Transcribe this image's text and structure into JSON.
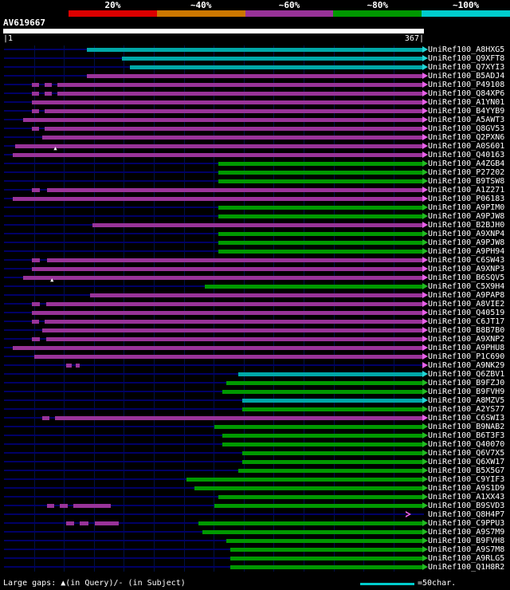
{
  "scale": {
    "labels": [
      "20%",
      "~40%",
      "~60%",
      "~80%",
      "~100%"
    ],
    "colors": [
      "#dd0000",
      "#cc7700",
      "#993399",
      "#009900",
      "#00cccc"
    ]
  },
  "query": {
    "name": "AV619667",
    "start_label": "|1",
    "end_label": "367|"
  },
  "colors": {
    "cyan": "#00a8a8",
    "purple": "#993399",
    "green": "#009900",
    "cyan_arrow": "#22d5d5",
    "purple_arrow": "#e860e8",
    "green_arrow": "#22bb22",
    "cyan_bright": "#00cccc",
    "row_line": "#000066"
  },
  "glyphs": {
    "gap_marker": "▲"
  },
  "chart_data": {
    "type": "bar",
    "title": "AV619667",
    "xlim": [
      1,
      367
    ],
    "legend_labels": [
      "20%",
      "~40%",
      "~60%",
      "~80%",
      "~100%"
    ],
    "bars": [
      {
        "label": "UniRef100_A8HXG5",
        "c": "cyan",
        "segs": [
          [
            73,
            367
          ]
        ]
      },
      {
        "label": "UniRef100_Q9XFT8",
        "c": "cyan",
        "segs": [
          [
            104,
            367
          ]
        ]
      },
      {
        "label": "UniRef100_Q7XYI3",
        "c": "cyan",
        "segs": [
          [
            111,
            367
          ]
        ]
      },
      {
        "label": "UniRef100_B5ADJ4",
        "c": "purple",
        "segs": [
          [
            73,
            367
          ]
        ]
      },
      {
        "label": "UniRef100_P49108",
        "c": "purple",
        "segs": [
          [
            25,
            31
          ],
          [
            36,
            42
          ],
          [
            47,
            367
          ]
        ]
      },
      {
        "label": "UniRef100_Q84XP6",
        "c": "purple",
        "segs": [
          [
            25,
            31
          ],
          [
            36,
            42
          ],
          [
            47,
            367
          ]
        ]
      },
      {
        "label": "UniRef100_A1YN01",
        "c": "purple",
        "segs": [
          [
            25,
            367
          ]
        ]
      },
      {
        "label": "UniRef100_B4YYB9",
        "c": "purple",
        "segs": [
          [
            25,
            31
          ],
          [
            36,
            367
          ]
        ]
      },
      {
        "label": "UniRef100_A5AWT3",
        "c": "purple",
        "segs": [
          [
            17,
            367
          ]
        ]
      },
      {
        "label": "UniRef100_Q8GV53",
        "c": "purple",
        "segs": [
          [
            25,
            31
          ],
          [
            36,
            367
          ]
        ]
      },
      {
        "label": "UniRef100_Q2PXN6",
        "c": "purple",
        "segs": [
          [
            34,
            367
          ]
        ]
      },
      {
        "label": "UniRef100_A0S601",
        "c": "purple",
        "segs": [
          [
            10,
            367
          ]
        ],
        "m": [
          46
        ]
      },
      {
        "label": "UniRef100_Q40163",
        "c": "purple",
        "segs": [
          [
            8,
            367
          ]
        ]
      },
      {
        "label": "UniRef100_A4ZGB4",
        "c": "green",
        "segs": [
          [
            188,
            367
          ]
        ]
      },
      {
        "label": "UniRef100_P27202",
        "c": "green",
        "segs": [
          [
            188,
            367
          ]
        ]
      },
      {
        "label": "UniRef100_B9TSW8",
        "c": "green",
        "segs": [
          [
            188,
            367
          ]
        ]
      },
      {
        "label": "UniRef100_A1Z271",
        "c": "purple",
        "segs": [
          [
            25,
            32
          ],
          [
            38,
            367
          ]
        ]
      },
      {
        "label": "UniRef100_P06183",
        "c": "purple",
        "segs": [
          [
            8,
            367
          ]
        ]
      },
      {
        "label": "UniRef100_A9PIM0",
        "c": "green",
        "segs": [
          [
            188,
            367
          ]
        ]
      },
      {
        "label": "UniRef100_A9PJW8",
        "c": "green",
        "segs": [
          [
            188,
            367
          ]
        ]
      },
      {
        "label": "UniRef100_B2BJH0",
        "c": "purple",
        "segs": [
          [
            78,
            367
          ]
        ]
      },
      {
        "label": "UniRef100_A9XNP4",
        "c": "green",
        "segs": [
          [
            188,
            367
          ]
        ]
      },
      {
        "label": "UniRef100_A9PJW8",
        "c": "green",
        "segs": [
          [
            188,
            367
          ]
        ]
      },
      {
        "label": "UniRef100_A9PH94",
        "c": "green",
        "segs": [
          [
            188,
            367
          ]
        ]
      },
      {
        "label": "UniRef100_C6SW43",
        "c": "purple",
        "segs": [
          [
            25,
            32
          ],
          [
            38,
            367
          ]
        ]
      },
      {
        "label": "UniRef100_A9XNP3",
        "c": "purple",
        "segs": [
          [
            25,
            367
          ]
        ]
      },
      {
        "label": "UniRef100_B6SQV5",
        "c": "purple",
        "segs": [
          [
            17,
            367
          ]
        ],
        "m": [
          43
        ]
      },
      {
        "label": "UniRef100_C5X9H4",
        "c": "green",
        "segs": [
          [
            176,
            367
          ]
        ]
      },
      {
        "label": "UniRef100_A9PAP8",
        "c": "purple",
        "segs": [
          [
            76,
            367
          ]
        ]
      },
      {
        "label": "UniRef100_A8VIE2",
        "c": "purple",
        "segs": [
          [
            25,
            32
          ],
          [
            37,
            367
          ]
        ]
      },
      {
        "label": "UniRef100_Q40519",
        "c": "purple",
        "segs": [
          [
            25,
            367
          ]
        ]
      },
      {
        "label": "UniRef100_C6JT17",
        "c": "purple",
        "segs": [
          [
            25,
            31
          ],
          [
            36,
            367
          ]
        ]
      },
      {
        "label": "UniRef100_B8B7B0",
        "c": "purple",
        "segs": [
          [
            34,
            367
          ]
        ]
      },
      {
        "label": "UniRef100_A9XNP2",
        "c": "purple",
        "segs": [
          [
            25,
            32
          ],
          [
            37,
            367
          ]
        ]
      },
      {
        "label": "UniRef100_A9PHU8",
        "c": "purple",
        "segs": [
          [
            8,
            367
          ]
        ]
      },
      {
        "label": "UniRef100_P1C690",
        "c": "purple",
        "segs": [
          [
            27,
            367
          ]
        ]
      },
      {
        "label": "UniRef100_A9NK29",
        "c": "purple",
        "segs": [
          [
            55,
            60
          ],
          [
            63,
            67
          ]
        ]
      },
      {
        "label": "UniRef100_Q6ZBV1",
        "c": "cyan",
        "segs": [
          [
            206,
            367
          ]
        ]
      },
      {
        "label": "UniRef100_B9FZJ0",
        "c": "green",
        "segs": [
          [
            195,
            367
          ]
        ]
      },
      {
        "label": "UniRef100_B9FVH9",
        "c": "green",
        "segs": [
          [
            192,
            367
          ]
        ]
      },
      {
        "label": "UniRef100_A8MZV5",
        "c": "cyan",
        "segs": [
          [
            209,
            367
          ]
        ]
      },
      {
        "label": "UniRef100_A2YS77",
        "c": "green",
        "segs": [
          [
            209,
            367
          ]
        ]
      },
      {
        "label": "UniRef100_C6SWI3",
        "c": "purple",
        "segs": [
          [
            34,
            40
          ],
          [
            45,
            367
          ]
        ]
      },
      {
        "label": "UniRef100_B9NAB2",
        "c": "green",
        "segs": [
          [
            185,
            367
          ]
        ]
      },
      {
        "label": "UniRef100_B6T3F3",
        "c": "green",
        "segs": [
          [
            192,
            367
          ]
        ]
      },
      {
        "label": "UniRef100_Q40070",
        "c": "green",
        "segs": [
          [
            192,
            367
          ]
        ]
      },
      {
        "label": "UniRef100_Q6V7X5",
        "c": "green",
        "segs": [
          [
            209,
            367
          ]
        ]
      },
      {
        "label": "UniRef100_Q6XW17",
        "c": "green",
        "segs": [
          [
            209,
            367
          ]
        ]
      },
      {
        "label": "UniRef100_B5X5G7",
        "c": "green",
        "segs": [
          [
            206,
            367
          ]
        ]
      },
      {
        "label": "UniRef100_C9YIF3",
        "c": "green",
        "segs": [
          [
            160,
            367
          ]
        ]
      },
      {
        "label": "UniRef100_A9S1D9",
        "c": "green",
        "segs": [
          [
            167,
            367
          ]
        ]
      },
      {
        "label": "UniRef100_A1XX43",
        "c": "green",
        "segs": [
          [
            188,
            367
          ]
        ]
      },
      {
        "label": "UniRef100_B9SVD3",
        "c": "green",
        "segs": [
          [
            38,
            44,
            "purple"
          ],
          [
            49,
            56,
            "purple"
          ],
          [
            61,
            94,
            "purple"
          ],
          [
            185,
            367,
            "green"
          ]
        ]
      },
      {
        "label": "UniRef100_Q8H4P7",
        "c": "purple",
        "segs": [],
        "arrow": "outline",
        "ax": 352
      },
      {
        "label": "UniRef100_C9PPU3",
        "c": "green",
        "segs": [
          [
            55,
            62,
            "purple"
          ],
          [
            67,
            74,
            "purple"
          ],
          [
            80,
            101,
            "purple"
          ],
          [
            171,
            367,
            "green"
          ]
        ]
      },
      {
        "label": "UniRef100_A9S7M9",
        "c": "green",
        "segs": [
          [
            174,
            367
          ]
        ]
      },
      {
        "label": "UniRef100_B9FVH8",
        "c": "green",
        "segs": [
          [
            195,
            367
          ]
        ]
      },
      {
        "label": "UniRef100_A9S7M8",
        "c": "green",
        "segs": [
          [
            199,
            367
          ]
        ]
      },
      {
        "label": "UniRef100_A9RLG5",
        "c": "green",
        "segs": [
          [
            199,
            367
          ]
        ]
      },
      {
        "label": "UniRef100_Q1H8R2",
        "c": "green",
        "segs": [
          [
            199,
            367
          ]
        ]
      }
    ]
  },
  "footer": {
    "gaps_text": "Large gaps: ▲(in Query)/- (in Subject)",
    "legend_text": "=50char."
  }
}
